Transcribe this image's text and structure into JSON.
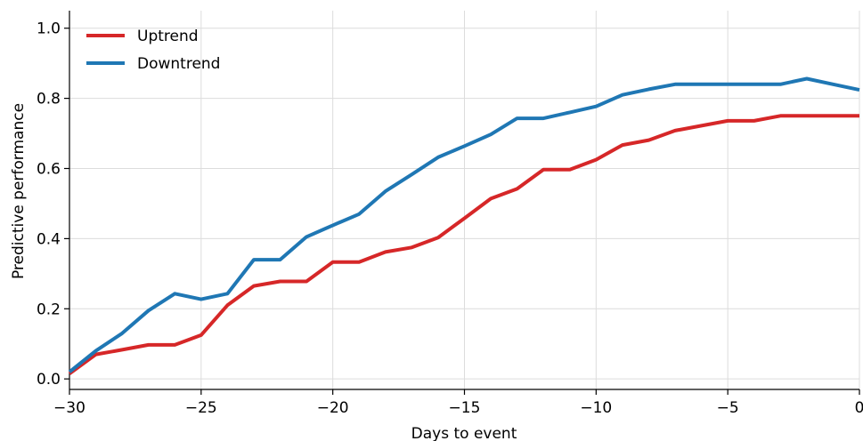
{
  "chart_data": {
    "type": "line",
    "title": "",
    "xlabel": "Days to event",
    "ylabel": "Predictive performance",
    "xlim": [
      -30,
      0
    ],
    "ylim": [
      -0.03,
      1.05
    ],
    "grid": true,
    "legend_placement": "top-left",
    "x_ticks": [
      -30,
      -25,
      -20,
      -15,
      -10,
      -5,
      0
    ],
    "x_tick_labels": [
      "−30",
      "−25",
      "−20",
      "−15",
      "−10",
      "−5",
      "0"
    ],
    "y_ticks": [
      0.0,
      0.2,
      0.4,
      0.6,
      0.8,
      1.0
    ],
    "y_tick_labels": [
      "0.0",
      "0.2",
      "0.4",
      "0.6",
      "0.8",
      "1.0"
    ],
    "x": [
      -30,
      -29,
      -28,
      -27,
      -26,
      -25,
      -24,
      -23,
      -22,
      -21,
      -20,
      -19,
      -18,
      -17,
      -16,
      -15,
      -14,
      -13,
      -12,
      -11,
      -10,
      -9,
      -8,
      -7,
      -6,
      -5,
      -4,
      -3,
      -2,
      -1,
      0
    ],
    "series": [
      {
        "name": "Uptrend",
        "color": "#d62728",
        "values": [
          0.015,
          0.07,
          0.083,
          0.097,
          0.097,
          0.125,
          0.21,
          0.265,
          0.278,
          0.278,
          0.333,
          0.333,
          0.362,
          0.375,
          0.403,
          0.458,
          0.514,
          0.542,
          0.597,
          0.597,
          0.625,
          0.667,
          0.681,
          0.708,
          0.722,
          0.736,
          0.736,
          0.75,
          0.75,
          0.75,
          0.75
        ]
      },
      {
        "name": "Downtrend",
        "color": "#1f77b4",
        "values": [
          0.02,
          0.08,
          0.13,
          0.195,
          0.243,
          0.227,
          0.243,
          0.34,
          0.34,
          0.405,
          0.438,
          0.47,
          0.535,
          0.583,
          0.632,
          0.664,
          0.697,
          0.743,
          0.743,
          0.76,
          0.777,
          0.81,
          0.826,
          0.84,
          0.84,
          0.84,
          0.84,
          0.84,
          0.856,
          0.84,
          0.824
        ]
      }
    ]
  }
}
